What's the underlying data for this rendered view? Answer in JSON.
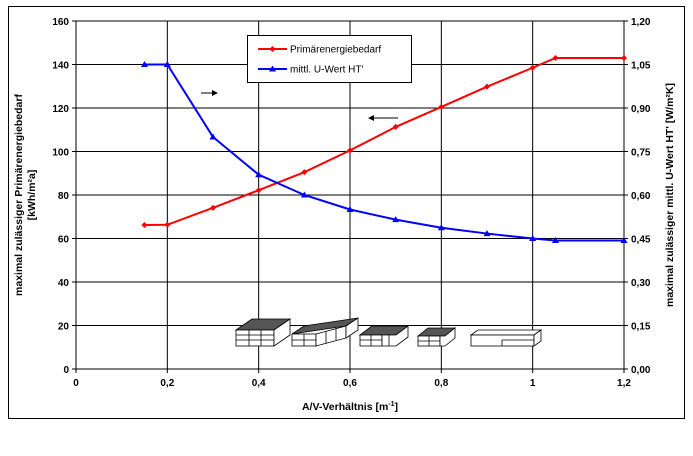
{
  "chart_data": {
    "type": "line",
    "xlabel": "A/V-Verhältnis [m",
    "xlabel_sup": "-1",
    "xlabel_end": "]",
    "ylabel_left_line1": "maximal zulässiger Primärenergiebedarf",
    "ylabel_left_line2": "[kWh/m²a]",
    "ylabel_right": "maximal zulässiger mittl. U-Wert HT' [W/m²K]",
    "xlim": [
      0,
      1.2
    ],
    "ylim_left": [
      0,
      160
    ],
    "ylim_right": [
      0,
      1.2
    ],
    "x_ticks": [
      "0",
      "0,2",
      "0,4",
      "0,6",
      "0,8",
      "1",
      "1,2"
    ],
    "x_tick_values": [
      0,
      0.2,
      0.4,
      0.6,
      0.8,
      1.0,
      1.2
    ],
    "y_left_ticks": [
      "0",
      "20",
      "40",
      "60",
      "80",
      "100",
      "120",
      "140",
      "160"
    ],
    "y_left_tick_values": [
      0,
      20,
      40,
      60,
      80,
      100,
      120,
      140,
      160
    ],
    "y_right_ticks": [
      "0,00",
      "0,15",
      "0,30",
      "0,45",
      "0,60",
      "0,75",
      "0,90",
      "1,05",
      "1,20"
    ],
    "y_right_tick_values": [
      0,
      0.15,
      0.3,
      0.45,
      0.6,
      0.75,
      0.9,
      1.05,
      1.2
    ],
    "grid": true,
    "legend_position": "top-center",
    "series": [
      {
        "name": "Primärenergiebedarf",
        "axis": "left",
        "color": "#ff0000",
        "marker": "diamond",
        "x": [
          0.15,
          0.2,
          0.3,
          0.4,
          0.5,
          0.6,
          0.7,
          0.8,
          0.9,
          1.0,
          1.05,
          1.2
        ],
        "values": [
          66.2,
          66.3,
          74.1,
          82.2,
          90.5,
          100.5,
          111.3,
          120.5,
          129.8,
          138.5,
          143.0,
          143.0
        ]
      },
      {
        "name": "mittl. U-Wert HT'",
        "axis": "right",
        "color": "#0000ff",
        "marker": "triangle",
        "x": [
          0.15,
          0.2,
          0.3,
          0.4,
          0.5,
          0.6,
          0.7,
          0.8,
          0.9,
          1.0,
          1.05,
          1.2
        ],
        "values": [
          1.05,
          1.05,
          0.8,
          0.67,
          0.6,
          0.55,
          0.515,
          0.487,
          0.467,
          0.45,
          0.443,
          0.443
        ]
      }
    ],
    "annotations": [
      {
        "type": "arrow",
        "direction": "right",
        "meaning": "series uses right axis"
      },
      {
        "type": "arrow",
        "direction": "left",
        "meaning": "series uses left axis"
      }
    ],
    "building_icons": [
      "tall-block-building",
      "row-houses-building",
      "terraced-building",
      "small-house-building",
      "bungalow-building"
    ]
  }
}
